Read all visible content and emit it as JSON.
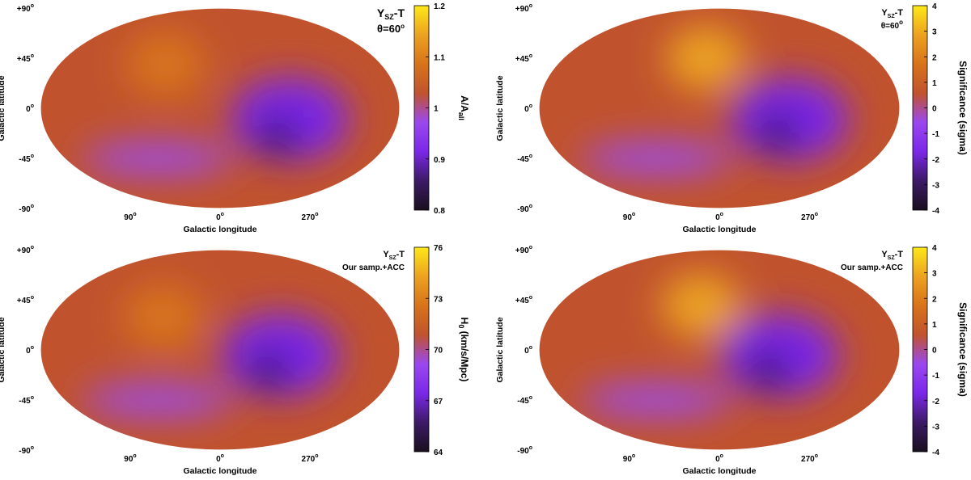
{
  "figure": {
    "colors": {
      "background": "#ffffff",
      "colormap": [
        "#1a0f1f",
        "#3d1a66",
        "#7a28e8",
        "#9a48ef",
        "#c0532e",
        "#d8731a",
        "#eca220",
        "#fde81a"
      ],
      "outline": "#000000"
    }
  },
  "chart_data": [
    {
      "type": "heatmap",
      "projection": "mollweide",
      "title_line1": "Y",
      "title_sub": "SZ",
      "title_suffix": "-T",
      "title_line2": "θ=60",
      "title_line2_sup": "o",
      "xlabel": "Galactic longitude",
      "ylabel": "Galactic latitude",
      "x_ticks": [
        {
          "value": "90",
          "sup": "o"
        },
        {
          "value": "0",
          "sup": "o"
        },
        {
          "value": "270",
          "sup": "o"
        }
      ],
      "y_ticks": [
        {
          "value": "+90",
          "sup": "o"
        },
        {
          "value": "+45",
          "sup": "o"
        },
        {
          "value": "0",
          "sup": "o"
        },
        {
          "value": "-45",
          "sup": "o"
        },
        {
          "value": "-90",
          "sup": "o"
        }
      ],
      "colorbar": {
        "label": "A/A",
        "label_sub": "all",
        "range": [
          0.8,
          1.2
        ],
        "ticks": [
          "1.2",
          "1.1",
          "1",
          "0.9",
          "0.8"
        ]
      },
      "features": [
        {
          "name": "deficit-core",
          "lon": 300,
          "lat": -25,
          "level": 0.0
        },
        {
          "name": "deficit-region",
          "lon": 290,
          "lat": -10,
          "level": 0.28
        },
        {
          "name": "southern-band",
          "lon": 70,
          "lat": -45,
          "level": 0.38
        },
        {
          "name": "northern-high",
          "lon": 60,
          "lat": 40,
          "level": 0.72
        }
      ]
    },
    {
      "type": "heatmap",
      "projection": "mollweide",
      "title_line1": "Y",
      "title_sub": "SZ",
      "title_suffix": "-T",
      "title_line2": "θ=60",
      "title_line2_sup": "o",
      "xlabel": "Galactic longitude",
      "ylabel": "Galactic latitude",
      "x_ticks": [
        {
          "value": "90",
          "sup": "o"
        },
        {
          "value": "0",
          "sup": "o"
        },
        {
          "value": "270",
          "sup": "o"
        }
      ],
      "y_ticks": [
        {
          "value": "+90",
          "sup": "o"
        },
        {
          "value": "+45",
          "sup": "o"
        },
        {
          "value": "0",
          "sup": "o"
        },
        {
          "value": "-45",
          "sup": "o"
        },
        {
          "value": "-90",
          "sup": "o"
        }
      ],
      "colorbar": {
        "label": "Significance (sigma)",
        "label_sub": "",
        "range": [
          -4,
          4
        ],
        "ticks": [
          "4",
          "3",
          "2",
          "1",
          "0",
          "-1",
          "-2",
          "-3",
          "-4"
        ]
      },
      "features": [
        {
          "name": "deficit-core",
          "lon": 300,
          "lat": -22,
          "level": 0.05
        },
        {
          "name": "deficit-region",
          "lon": 290,
          "lat": -10,
          "level": 0.3
        },
        {
          "name": "southern-band",
          "lon": 70,
          "lat": -45,
          "level": 0.38
        },
        {
          "name": "northern-high",
          "lon": 15,
          "lat": 45,
          "level": 0.82
        }
      ]
    },
    {
      "type": "heatmap",
      "projection": "mollweide",
      "title_line1": "Y",
      "title_sub": "SZ",
      "title_suffix": "-T",
      "title_line2": "Our samp.+ACC",
      "title_line2_sup": "",
      "xlabel": "Galactic longitude",
      "ylabel": "Galactic latitude",
      "x_ticks": [
        {
          "value": "90",
          "sup": "o"
        },
        {
          "value": "0",
          "sup": "o"
        },
        {
          "value": "270",
          "sup": "o"
        }
      ],
      "y_ticks": [
        {
          "value": "+90",
          "sup": "o"
        },
        {
          "value": "+45",
          "sup": "o"
        },
        {
          "value": "0",
          "sup": "o"
        },
        {
          "value": "-45",
          "sup": "o"
        },
        {
          "value": "-90",
          "sup": "o"
        }
      ],
      "colorbar": {
        "label": "H",
        "label_sub": "0",
        "label_suffix": " (km/s/Mpc)",
        "range": [
          64,
          76
        ],
        "ticks": [
          "76",
          "73",
          "70",
          "67",
          "64"
        ]
      },
      "features": [
        {
          "name": "deficit-core",
          "lon": 310,
          "lat": -18,
          "level": 0.0
        },
        {
          "name": "deficit-region",
          "lon": 300,
          "lat": -5,
          "level": 0.25
        },
        {
          "name": "southern-band",
          "lon": 70,
          "lat": -45,
          "level": 0.4
        },
        {
          "name": "northern-high",
          "lon": 60,
          "lat": 30,
          "level": 0.68
        }
      ]
    },
    {
      "type": "heatmap",
      "projection": "mollweide",
      "title_line1": "Y",
      "title_sub": "SZ",
      "title_suffix": "-T",
      "title_line2": "Our samp.+ACC",
      "title_line2_sup": "",
      "xlabel": "Galactic longitude",
      "ylabel": "Galactic latitude",
      "x_ticks": [
        {
          "value": "90",
          "sup": "o"
        },
        {
          "value": "0",
          "sup": "o"
        },
        {
          "value": "270",
          "sup": "o"
        }
      ],
      "y_ticks": [
        {
          "value": "+90",
          "sup": "o"
        },
        {
          "value": "+45",
          "sup": "o"
        },
        {
          "value": "0",
          "sup": "o"
        },
        {
          "value": "-45",
          "sup": "o"
        },
        {
          "value": "-90",
          "sup": "o"
        }
      ],
      "colorbar": {
        "label": "Significance (sigma)",
        "label_sub": "",
        "range": [
          -4,
          4
        ],
        "ticks": [
          "4",
          "3",
          "2",
          "1",
          "0",
          "-1",
          "-2",
          "-3",
          "-4"
        ]
      },
      "features": [
        {
          "name": "deficit-core",
          "lon": 310,
          "lat": -18,
          "level": 0.05
        },
        {
          "name": "deficit-region",
          "lon": 300,
          "lat": -5,
          "level": 0.3
        },
        {
          "name": "southern-band",
          "lon": 70,
          "lat": -45,
          "level": 0.4
        },
        {
          "name": "northern-high",
          "lon": 20,
          "lat": 40,
          "level": 0.85
        }
      ]
    }
  ]
}
